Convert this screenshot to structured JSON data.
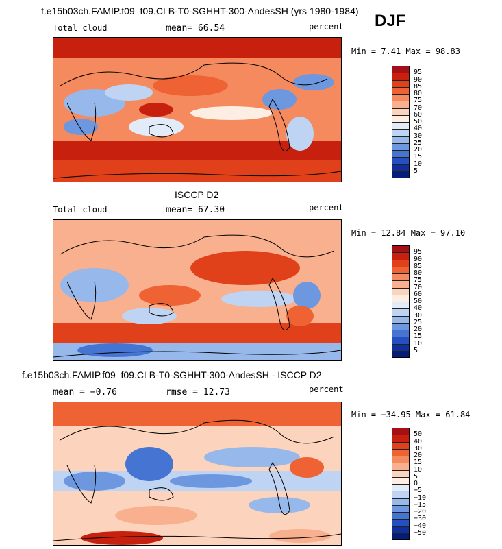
{
  "header": {
    "title": "f.e15b03ch.FAMIP.f09_f09.CLB-T0-SGHHT-300-AndesSH (yrs 1980-1984)",
    "season": "DJF"
  },
  "panels": [
    {
      "variable": "Total cloud",
      "stat_text": "mean=  66.54",
      "units": "percent",
      "minmax_text": "Min =   7.41 Max =  98.83",
      "colorbar_labels": [
        "95",
        "90",
        "85",
        "80",
        "75",
        "70",
        "60",
        "50",
        "40",
        "30",
        "25",
        "20",
        "15",
        "10",
        "5"
      ],
      "colors": [
        "#a50f15",
        "#c8200e",
        "#e0401a",
        "#ee6234",
        "#f58a5e",
        "#f9b08e",
        "#fcd4bd",
        "#fdeee4",
        "#e2ebf8",
        "#bfd4f2",
        "#97b8ea",
        "#6d97df",
        "#4674d2",
        "#2450c0",
        "#0f2fa0",
        "#061d78"
      ]
    },
    {
      "title": "ISCCP D2",
      "variable": "Total cloud",
      "stat_text": "mean=  67.30",
      "units": "percent",
      "minmax_text": "Min =  12.84 Max =  97.10",
      "colorbar_labels": [
        "95",
        "90",
        "85",
        "80",
        "75",
        "70",
        "60",
        "50",
        "40",
        "30",
        "25",
        "20",
        "15",
        "10",
        "5"
      ],
      "colors": [
        "#a50f15",
        "#c8200e",
        "#e0401a",
        "#ee6234",
        "#f58a5e",
        "#f9b08e",
        "#fcd4bd",
        "#fdeee4",
        "#e2ebf8",
        "#bfd4f2",
        "#97b8ea",
        "#6d97df",
        "#4674d2",
        "#2450c0",
        "#0f2fa0",
        "#061d78"
      ]
    },
    {
      "title": "f.e15b03ch.FAMIP.f09_f09.CLB-T0-SGHHT-300-AndesSH - ISCCP D2",
      "stat_text": "mean =  −0.76",
      "rmse_text": "rmse =  12.73",
      "units": "percent",
      "minmax_text": "Min = −34.95 Max =  61.84",
      "colorbar_labels": [
        "50",
        "40",
        "30",
        "20",
        "15",
        "10",
        "5",
        "0",
        "−5",
        "−10",
        "−15",
        "−20",
        "−30",
        "−40",
        "−50"
      ],
      "colors": [
        "#a50f15",
        "#c8200e",
        "#e0401a",
        "#ee6234",
        "#f58a5e",
        "#f9b08e",
        "#fcd4bd",
        "#fdeee4",
        "#e2ebf8",
        "#bfd4f2",
        "#97b8ea",
        "#6d97df",
        "#4674d2",
        "#2450c0",
        "#0f2fa0",
        "#061d78"
      ]
    }
  ]
}
